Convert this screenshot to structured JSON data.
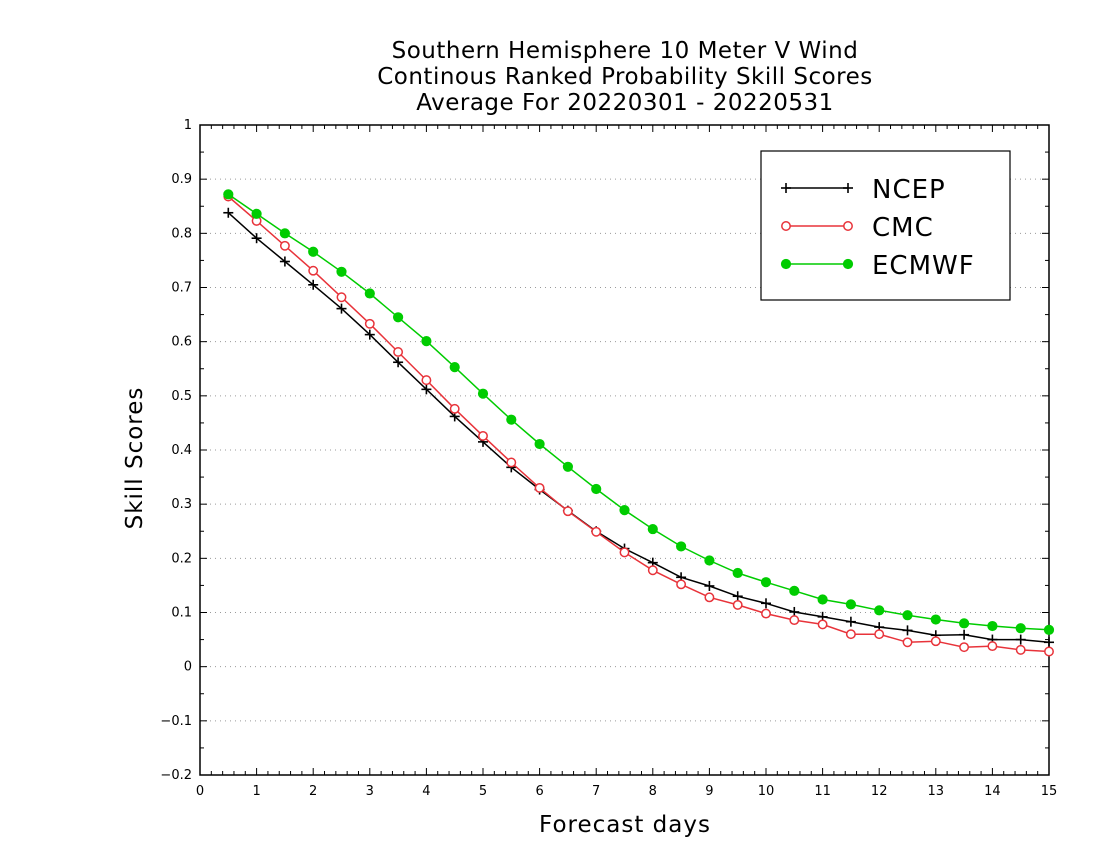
{
  "chart_data": {
    "type": "line",
    "title_lines": [
      "Southern Hemisphere 10 Meter V Wind",
      "Continous Ranked Probability Skill Scores",
      "Average For 20220301 - 20220531"
    ],
    "xlabel": "Forecast days",
    "ylabel": "Skill Scores",
    "xlim": [
      0,
      15
    ],
    "ylim": [
      -0.2,
      1
    ],
    "xticks": [
      "0",
      "1",
      "2",
      "3",
      "4",
      "5",
      "6",
      "7",
      "8",
      "9",
      "10",
      "11",
      "12",
      "13",
      "14",
      "15"
    ],
    "yticks": [
      "−0.2",
      "−0.1",
      "0",
      "0.1",
      "0.2",
      "0.3",
      "0.4",
      "0.5",
      "0.6",
      "0.7",
      "0.8",
      "0.9",
      "1"
    ],
    "grid": "horizontal dotted",
    "legend_position": "top-right",
    "x": [
      0.5,
      1,
      1.5,
      2,
      2.5,
      3,
      3.5,
      4,
      4.5,
      5,
      5.5,
      6,
      6.5,
      7,
      7.5,
      8,
      8.5,
      9,
      9.5,
      10,
      10.5,
      11,
      11.5,
      12,
      12.5,
      13,
      13.5,
      14,
      14.5,
      15
    ],
    "series": [
      {
        "name": "NCEP",
        "color": "#000000",
        "marker": "plus",
        "values": [
          0.838,
          0.791,
          0.748,
          0.705,
          0.661,
          0.613,
          0.562,
          0.512,
          0.462,
          0.415,
          0.368,
          0.327,
          0.288,
          0.25,
          0.218,
          0.192,
          0.165,
          0.149,
          0.13,
          0.117,
          0.101,
          0.092,
          0.083,
          0.073,
          0.067,
          0.058,
          0.059,
          0.05,
          0.05,
          0.045
        ]
      },
      {
        "name": "CMC",
        "color": "#e8333a",
        "marker": "open-circle",
        "values": [
          0.868,
          0.823,
          0.777,
          0.731,
          0.682,
          0.633,
          0.581,
          0.529,
          0.476,
          0.426,
          0.377,
          0.33,
          0.287,
          0.249,
          0.211,
          0.178,
          0.152,
          0.128,
          0.114,
          0.098,
          0.086,
          0.078,
          0.06,
          0.06,
          0.045,
          0.047,
          0.036,
          0.038,
          0.031,
          0.028
        ]
      },
      {
        "name": "ECMWF",
        "color": "#00cc00",
        "marker": "filled-circle",
        "values": [
          0.872,
          0.836,
          0.8,
          0.766,
          0.729,
          0.689,
          0.645,
          0.601,
          0.553,
          0.504,
          0.456,
          0.411,
          0.369,
          0.328,
          0.289,
          0.254,
          0.222,
          0.196,
          0.173,
          0.156,
          0.14,
          0.124,
          0.115,
          0.104,
          0.095,
          0.087,
          0.08,
          0.075,
          0.071,
          0.068
        ]
      }
    ]
  }
}
